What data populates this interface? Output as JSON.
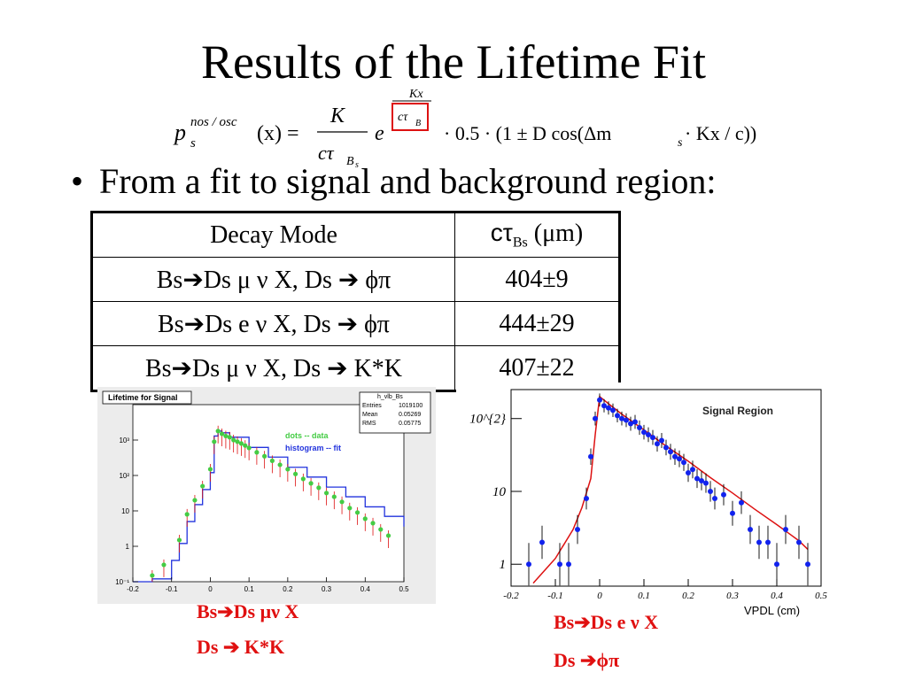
{
  "slide": {
    "title": "Results of the Lifetime Fit",
    "bullet": "From a fit to signal and background region:"
  },
  "formula": {
    "lhs_base": "p",
    "lhs_sup": "nos / osc",
    "lhs_sub": "s",
    "lhs_arg": "(x) =",
    "frac_num": "K",
    "frac_den": "cτ",
    "frac_den_sub": "B",
    "frac_den_subsub": "s",
    "exp_base": "e",
    "exp_num": "Kx",
    "exp_den": "cτ",
    "exp_den_sub": "B",
    "rest": "· 0.5 · (1 ± D cos(Δm",
    "rest_sub": "s",
    "rest_end": " · Kx / c))"
  },
  "table": {
    "headers": [
      "Decay Mode",
      "cτ",
      "Bs",
      " (μm)"
    ],
    "rows": [
      {
        "mode": "Bs➔Ds μ ν X, Ds ➔ ϕπ",
        "value": "404±9"
      },
      {
        "mode": "Bs➔Ds e ν X, Ds ➔ ϕπ",
        "value": "444±29"
      },
      {
        "mode": "Bs➔Ds μ ν X, Ds ➔ K*K",
        "value": "407±22"
      }
    ]
  },
  "chart_data": [
    {
      "type": "line",
      "title": "Lifetime for Signal",
      "stats_box": {
        "name": "h_vlb_Bs",
        "entries_label": "Entries",
        "entries": "1019100",
        "mean_label": "Mean",
        "mean": "0.05269",
        "rms_label": "RMS",
        "rms": "0.05775"
      },
      "legend": [
        "dots -- data",
        "histogram -- fit"
      ],
      "xlim": [
        -0.2,
        0.5
      ],
      "x_ticks": [
        "-0.2",
        "-0.1",
        "0",
        "0.1",
        "0.2",
        "0.3",
        "0.4",
        "0.5"
      ],
      "y_scale": "log",
      "ylim": [
        0.1,
        10000
      ],
      "y_ticks": [
        "10⁻¹",
        "1",
        "10",
        "10²",
        "10³"
      ],
      "series": [
        {
          "name": "dots -- data",
          "color": "#44cc44",
          "x": [
            -0.15,
            -0.12,
            -0.08,
            -0.06,
            -0.04,
            -0.02,
            0.0,
            0.01,
            0.02,
            0.03,
            0.04,
            0.05,
            0.06,
            0.07,
            0.08,
            0.09,
            0.1,
            0.12,
            0.14,
            0.16,
            0.18,
            0.2,
            0.22,
            0.24,
            0.26,
            0.28,
            0.3,
            0.32,
            0.34,
            0.36,
            0.38,
            0.4,
            0.42,
            0.44,
            0.46
          ],
          "y": [
            0.15,
            0.3,
            1.5,
            8,
            20,
            50,
            150,
            900,
            1800,
            1500,
            1300,
            1200,
            1000,
            900,
            800,
            700,
            600,
            450,
            350,
            260,
            200,
            150,
            110,
            80,
            60,
            45,
            32,
            25,
            18,
            12,
            9,
            6,
            4.5,
            3,
            2
          ]
        },
        {
          "name": "histogram -- fit",
          "color": "#2233dd",
          "x": [
            -0.2,
            -0.15,
            -0.1,
            -0.08,
            -0.06,
            -0.04,
            -0.02,
            0.0,
            0.01,
            0.02,
            0.03,
            0.05,
            0.1,
            0.15,
            0.2,
            0.25,
            0.3,
            0.35,
            0.4,
            0.45,
            0.5
          ],
          "y": [
            0.1,
            0.12,
            0.4,
            1.2,
            5,
            15,
            40,
            120,
            1300,
            1800,
            1600,
            1200,
            620,
            330,
            170,
            90,
            47,
            25,
            13,
            7,
            3.6
          ]
        }
      ]
    },
    {
      "type": "scatter",
      "title": "Signal Region",
      "xlabel": "VPDL (cm)",
      "xlim": [
        -0.2,
        0.5
      ],
      "x_ticks": [
        "-0.2",
        "-0.1",
        "0",
        "0.1",
        "0.2",
        "0.3",
        "0.4",
        "0.5"
      ],
      "y_scale": "log",
      "ylim": [
        0.5,
        250
      ],
      "y_ticks": [
        "1",
        "10",
        "10^{2}"
      ],
      "series": [
        {
          "name": "data",
          "color": "#1122ee",
          "x": [
            -0.16,
            -0.13,
            -0.09,
            -0.07,
            -0.05,
            -0.03,
            -0.02,
            -0.01,
            0.0,
            0.01,
            0.02,
            0.03,
            0.04,
            0.05,
            0.06,
            0.07,
            0.08,
            0.09,
            0.1,
            0.11,
            0.12,
            0.13,
            0.14,
            0.15,
            0.16,
            0.17,
            0.18,
            0.19,
            0.2,
            0.21,
            0.22,
            0.23,
            0.24,
            0.25,
            0.26,
            0.28,
            0.3,
            0.32,
            0.34,
            0.36,
            0.38,
            0.4,
            0.42,
            0.45,
            0.47
          ],
          "y": [
            1,
            2,
            1,
            1,
            3,
            8,
            30,
            100,
            180,
            150,
            140,
            130,
            110,
            100,
            95,
            85,
            90,
            75,
            65,
            60,
            55,
            45,
            50,
            40,
            35,
            30,
            28,
            25,
            18,
            20,
            15,
            14,
            13,
            10,
            8,
            9,
            5,
            7,
            3,
            2,
            2,
            1,
            3,
            2,
            1
          ]
        },
        {
          "name": "fit",
          "color": "#dd1111",
          "x": [
            -0.15,
            -0.1,
            -0.06,
            -0.04,
            -0.02,
            -0.01,
            0.0,
            0.02,
            0.05,
            0.1,
            0.15,
            0.2,
            0.25,
            0.3,
            0.35,
            0.4,
            0.45,
            0.47
          ],
          "y": [
            0.55,
            1.2,
            3,
            6,
            15,
            60,
            200,
            160,
            115,
            70,
            42,
            26,
            15.5,
            9.5,
            5.7,
            3.5,
            2.1,
            1.6
          ]
        }
      ]
    }
  ],
  "captions": {
    "left_1": "Bs➔Ds μν X",
    "left_2": "Ds ➔ K*K",
    "right_1": "Bs➔Ds e ν X",
    "right_2": "Ds ➔ϕπ"
  },
  "colors": {
    "caption": "#e01010",
    "data_green": "#44cc44",
    "fit_blue": "#2233dd",
    "fit_red": "#dd1111",
    "points_blue": "#1122ee"
  }
}
